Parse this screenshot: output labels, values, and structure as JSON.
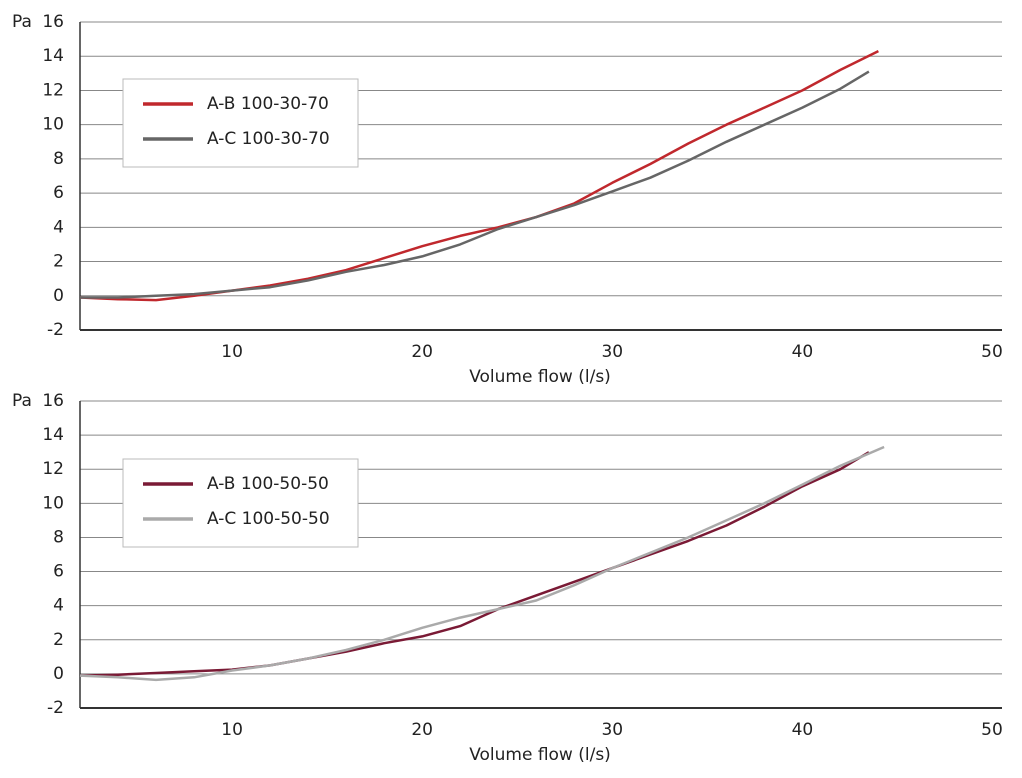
{
  "chart_data": [
    {
      "type": "line",
      "y_label": "Pa",
      "x_label": "Volume flow (l/s)",
      "xlim": [
        2,
        50.5
      ],
      "xticks": [
        10,
        20,
        30,
        40,
        50
      ],
      "ylim": [
        -2,
        16
      ],
      "yticks": [
        -2,
        0,
        2,
        4,
        6,
        8,
        10,
        12,
        14,
        16
      ],
      "grid": true,
      "series": [
        {
          "name": "A-B 100-30-70",
          "color": "#c0282d",
          "x": [
            2,
            4,
            6,
            8,
            10,
            12,
            14,
            16,
            18,
            20,
            22,
            24,
            26,
            28,
            30,
            32,
            34,
            36,
            38,
            40,
            42,
            44
          ],
          "values": [
            -0.1,
            -0.2,
            -0.25,
            0,
            0.3,
            0.6,
            1.0,
            1.5,
            2.2,
            2.9,
            3.5,
            4.0,
            4.6,
            5.4,
            6.6,
            7.7,
            8.9,
            10.0,
            11.0,
            12.0,
            13.2,
            14.3
          ]
        },
        {
          "name": "A-C 100-30-70",
          "color": "#666666",
          "x": [
            2,
            4,
            6,
            8,
            10,
            12,
            14,
            16,
            18,
            20,
            22,
            24,
            26,
            28,
            30,
            32,
            34,
            36,
            38,
            40,
            42,
            43.5
          ],
          "values": [
            -0.1,
            -0.1,
            0,
            0.1,
            0.3,
            0.5,
            0.9,
            1.4,
            1.8,
            2.3,
            3.0,
            3.9,
            4.6,
            5.3,
            6.1,
            6.9,
            7.9,
            9.0,
            10.0,
            11.0,
            12.1,
            13.1
          ]
        }
      ]
    },
    {
      "type": "line",
      "y_label": "Pa",
      "x_label": "Volume flow (l/s)",
      "xlim": [
        2,
        50.5
      ],
      "xticks": [
        10,
        20,
        30,
        40,
        50
      ],
      "ylim": [
        -2,
        16
      ],
      "yticks": [
        -2,
        0,
        2,
        4,
        6,
        8,
        10,
        12,
        14,
        16
      ],
      "grid": true,
      "series": [
        {
          "name": "A-B 100-50-50",
          "color": "#7a1a35",
          "x": [
            2,
            4,
            6,
            8,
            10,
            12,
            14,
            16,
            18,
            20,
            22,
            24,
            26,
            28,
            30,
            32,
            34,
            36,
            38,
            40,
            42,
            43.5
          ],
          "values": [
            -0.1,
            -0.05,
            0.05,
            0.15,
            0.25,
            0.5,
            0.9,
            1.3,
            1.8,
            2.2,
            2.8,
            3.8,
            4.6,
            5.4,
            6.2,
            7.0,
            7.8,
            8.7,
            9.8,
            11.0,
            12.0,
            13.0
          ]
        },
        {
          "name": "A-C 100-50-50",
          "color": "#aaaaaa",
          "x": [
            2,
            4,
            6,
            8,
            10,
            12,
            14,
            16,
            18,
            20,
            22,
            24,
            26,
            28,
            30,
            32,
            34,
            36,
            38,
            40,
            42,
            44.3
          ],
          "values": [
            -0.1,
            -0.2,
            -0.35,
            -0.2,
            0.2,
            0.5,
            0.9,
            1.4,
            2.0,
            2.7,
            3.3,
            3.8,
            4.3,
            5.2,
            6.2,
            7.1,
            8.0,
            9.0,
            10.0,
            11.1,
            12.2,
            13.3
          ]
        }
      ]
    }
  ]
}
